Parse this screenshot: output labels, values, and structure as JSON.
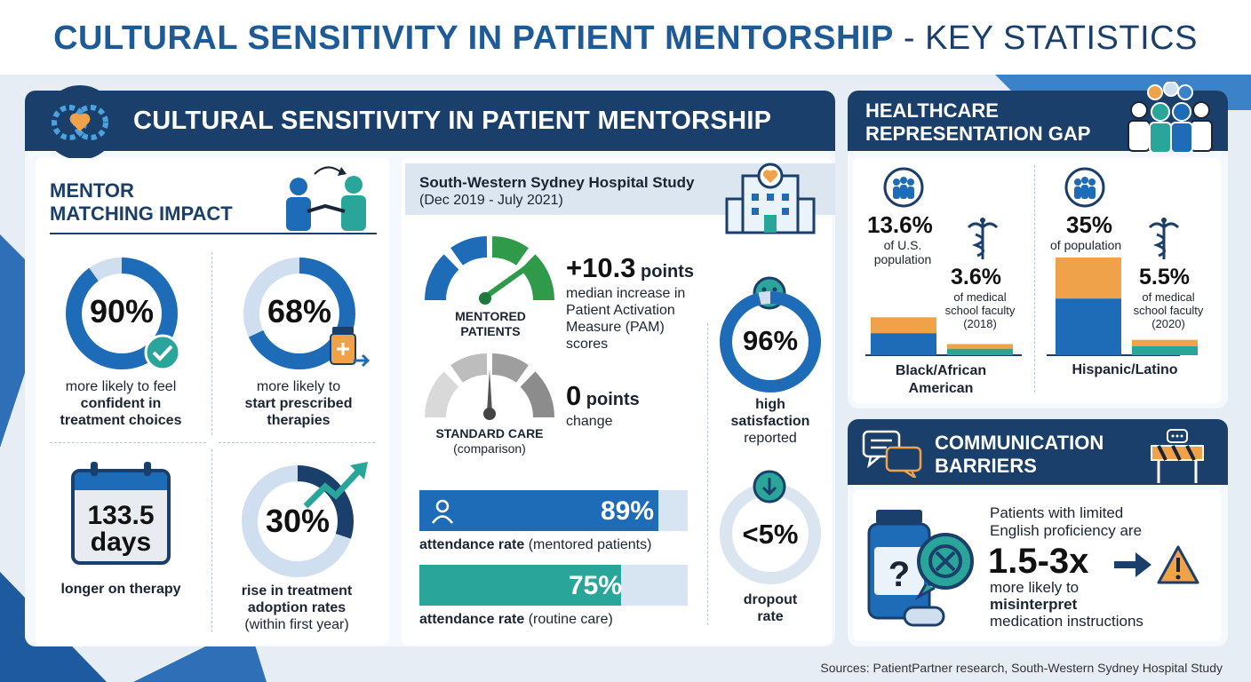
{
  "title": {
    "part1": "CULTURAL SENSITIVITY IN PATIENT MENTORSHIP",
    "part2": " - KEY STATISTICS"
  },
  "colors": {
    "navy": "#1b3f6b",
    "blue": "#1e6cb8",
    "light_blue": "#cfdff0",
    "green": "#2e9a4a",
    "teal": "#2aa59a",
    "orange": "#f0a24b",
    "gray": "#8c8c8c"
  },
  "left_panel": {
    "header": "CULTURAL SENSITIVITY IN PATIENT MENTORSHIP",
    "header_icon": "heart-gears-icon",
    "subtitle_line1": "MENTOR",
    "subtitle_line2": "MATCHING IMPACT",
    "handshake_icon": "handshake-icon",
    "stats": [
      {
        "value": "90%",
        "line1": "more likely to feel",
        "line2": "confident in",
        "line3": "treatment choices",
        "fraction": 0.9,
        "icon": "checkmark-icon"
      },
      {
        "value": "68%",
        "line1": "more likely to",
        "line2": "start prescribed",
        "line3": "therapies",
        "fraction": 0.68,
        "icon": "medicine-bottle-icon"
      },
      {
        "value_line1": "133.5",
        "value_line2": "days",
        "caption": "longer on therapy",
        "icon": "calendar-icon"
      },
      {
        "value": "30%",
        "line1": "rise in treatment",
        "line2": "adoption rates",
        "line3": "(within first year)",
        "fraction": 0.3,
        "icon": "trend-arrow-icon"
      }
    ]
  },
  "study": {
    "title": "South-Western Sydney Hospital Study",
    "dates": "(Dec 2019 - July 2021)",
    "hospital_icon": "hospital-icon",
    "mentored": {
      "gauge_label_line1": "MENTORED",
      "gauge_label_line2": "PATIENTS",
      "value": "+10.3",
      "unit": " points",
      "desc_line1": "median increase in",
      "desc_line2": "Patient Activation",
      "desc_line3": "Measure (PAM)",
      "desc_line4": "scores"
    },
    "standard": {
      "gauge_label_line1": "STANDARD CARE",
      "gauge_label_line2": "(comparison)",
      "value": "0",
      "unit": " points",
      "desc_line1": "change"
    },
    "attendance": [
      {
        "value": "89%",
        "fraction": 0.89,
        "label_bold": "attendance rate",
        "label_rest": " (mentored patients)",
        "icon": "person-icon"
      },
      {
        "value": "75%",
        "fraction": 0.75,
        "label_bold": "attendance rate",
        "label_rest": " (routine care)"
      }
    ],
    "satisfaction": {
      "value": "96%",
      "fraction": 0.96,
      "line1": "high",
      "line2": "satisfaction",
      "line3": "reported",
      "icon": "smiley-icon"
    },
    "dropout": {
      "value": "<5%",
      "fraction": 0.05,
      "line1": "dropout",
      "line2": "rate",
      "icon": "down-arrow-icon"
    }
  },
  "representation": {
    "header_line1": "HEALTHCARE",
    "header_line2": "REPRESENTATION GAP",
    "header_icon": "people-group-icon",
    "groups": [
      {
        "population_value": "13.6%",
        "population_line1": "of U.S.",
        "population_line2": "population",
        "population_fraction": 0.136,
        "faculty_value": "3.6%",
        "faculty_line1": "of medical",
        "faculty_line2": "school faculty",
        "faculty_line3": "(2018)",
        "faculty_fraction": 0.036,
        "name_line1": "Black/African",
        "name_line2": "American"
      },
      {
        "population_value": "35%",
        "population_line1": "of population",
        "population_fraction": 0.35,
        "faculty_value": "5.5%",
        "faculty_line1": "of medical",
        "faculty_line2": "school faculty",
        "faculty_line3": "(2020)",
        "faculty_fraction": 0.055,
        "name_line1": "Hispanic/Latino"
      }
    ]
  },
  "communication": {
    "header_line1": "COMMUNICATION",
    "header_line2": "BARRIERS",
    "header_icon": "speech-bubbles-icon",
    "barrier_icon": "roadblock-icon",
    "line1": "Patients with limited",
    "line2": "English proficiency are",
    "value": "1.5-3x",
    "line3": "more likely to",
    "line4": "misinterpret",
    "line5": "medication instructions"
  },
  "sources": "Sources: PatientPartner research, South-Western Sydney Hospital Study"
}
